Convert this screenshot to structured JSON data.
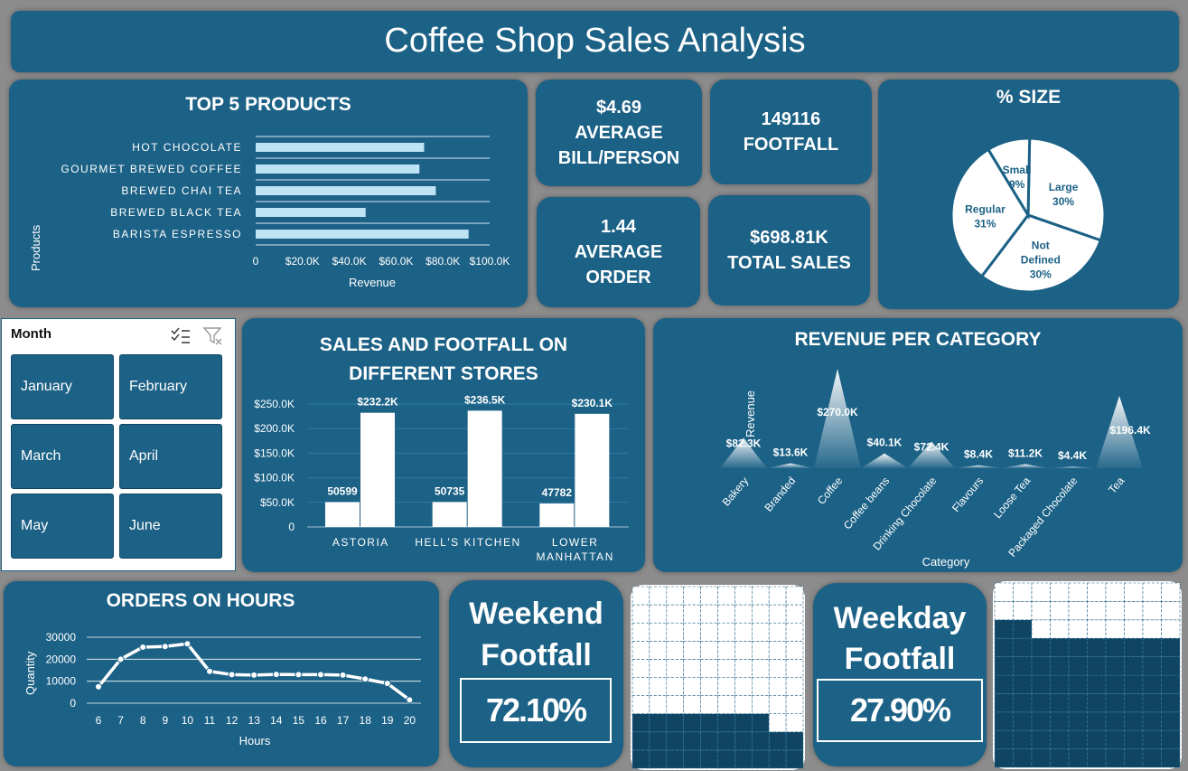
{
  "header": {
    "title": "Coffee Shop Sales Analysis"
  },
  "top_products": {
    "title": "TOP 5 PRODUCTS",
    "ylabel": "Products",
    "xlabel": "Revenue",
    "ticks": [
      "0",
      "$20.0K",
      "$40.0K",
      "$60.0K",
      "$80.0K",
      "$100.0K"
    ]
  },
  "kpis": {
    "avg_bill": {
      "value": "$4.69",
      "label1": "AVERAGE",
      "label2": "BILL/PERSON"
    },
    "footfall": {
      "value": "149116",
      "label1": "FOOTFALL"
    },
    "avg_order": {
      "value": "1.44",
      "label1": "AVERAGE",
      "label2": "ORDER"
    },
    "total_sales": {
      "value": "$698.81K",
      "label1": "TOTAL SALES"
    }
  },
  "size_pie": {
    "title": "% SIZE"
  },
  "slicer": {
    "header": "Month",
    "months": [
      "January",
      "February",
      "March",
      "April",
      "May",
      "June"
    ]
  },
  "stores": {
    "title_line1": "SALES AND FOOTFALL ON",
    "title_line2": "DIFFERENT STORES",
    "yticks": [
      "$250.0K",
      "$200.0K",
      "$150.0K",
      "$100.0K",
      "$50.0K",
      "0"
    ]
  },
  "revenue_category": {
    "title": "REVENUE PER CATEGORY",
    "xlabel": "Category",
    "ylabel": "Revenue"
  },
  "hours": {
    "title": "ORDERS ON HOURS",
    "xlabel": "Hours",
    "ylabel": "Quantity",
    "yticks": [
      "30000",
      "20000",
      "10000",
      "0"
    ]
  },
  "weekend": {
    "line1": "Weekend",
    "line2": "Footfall",
    "value": "72.10%"
  },
  "weekday": {
    "line1": "Weekday",
    "line2": "Footfall",
    "value": "27.90%"
  },
  "colors": {
    "panel": "#1c6186",
    "bar_light": "#bde3f5",
    "background": "#8c8c8c",
    "waffle_fill": "#0f4563"
  },
  "chart_data": [
    {
      "type": "bar",
      "orientation": "horizontal",
      "title": "TOP 5 PRODUCTS",
      "xlabel": "Revenue",
      "ylabel": "Products",
      "categories": [
        "HOT CHOCOLATE",
        "GOURMET BREWED COFFEE",
        "BREWED CHAI TEA",
        "BREWED BLACK TEA",
        "BARISTA ESPRESSO"
      ],
      "values": [
        72000,
        70000,
        77000,
        47000,
        91000
      ],
      "xlim": [
        0,
        100000
      ],
      "grid": true
    },
    {
      "type": "pie",
      "title": "% SIZE",
      "labels": [
        "Large",
        "Not Defined",
        "Regular",
        "Small"
      ],
      "values": [
        30,
        30,
        31,
        9
      ],
      "value_labels": [
        "30%",
        "30%",
        "31%",
        "9%"
      ]
    },
    {
      "type": "bar",
      "title": "SALES AND FOOTFALL ON DIFFERENT STORES",
      "categories": [
        "ASTORIA",
        "HELL'S KITCHEN",
        "LOWER MANHATTAN"
      ],
      "series": [
        {
          "values": [
            50599,
            50735,
            47782
          ],
          "labels": [
            "50599",
            "50735",
            "47782"
          ]
        },
        {
          "values": [
            232200,
            236500,
            230100
          ],
          "labels": [
            "$232.2K",
            "$236.5K",
            "$230.1K"
          ]
        }
      ],
      "ylim": [
        0,
        250000
      ]
    },
    {
      "type": "area",
      "title": "REVENUE PER CATEGORY",
      "xlabel": "Category",
      "ylabel": "Revenue",
      "categories": [
        "Bakery",
        "Branded",
        "Coffee",
        "Coffee beans",
        "Drinking Chocolate",
        "Flavours",
        "Loose Tea",
        "Packaged Chocolate",
        "Tea"
      ],
      "values": [
        82300,
        13600,
        270000,
        40100,
        72400,
        8400,
        11200,
        4400,
        196400
      ],
      "value_labels": [
        "$82.3K",
        "$13.6K",
        "$270.0K",
        "$40.1K",
        "$72.4K",
        "$8.4K",
        "$11.2K",
        "$4.4K",
        "$196.4K"
      ]
    },
    {
      "type": "line",
      "title": "ORDERS ON HOURS",
      "xlabel": "Hours",
      "ylabel": "Quantity",
      "x": [
        6,
        7,
        8,
        9,
        10,
        11,
        12,
        13,
        14,
        15,
        16,
        17,
        18,
        19,
        20
      ],
      "values": [
        7500,
        20000,
        25500,
        25800,
        27000,
        14500,
        13000,
        12800,
        13100,
        13000,
        13000,
        12800,
        11000,
        9000,
        1500
      ],
      "ylim": [
        0,
        30000
      ],
      "grid": true
    },
    {
      "type": "waffle",
      "name": "Weekend Footfall",
      "value": 0.721
    },
    {
      "type": "waffle",
      "name": "Weekday Footfall",
      "value": 0.279
    }
  ]
}
